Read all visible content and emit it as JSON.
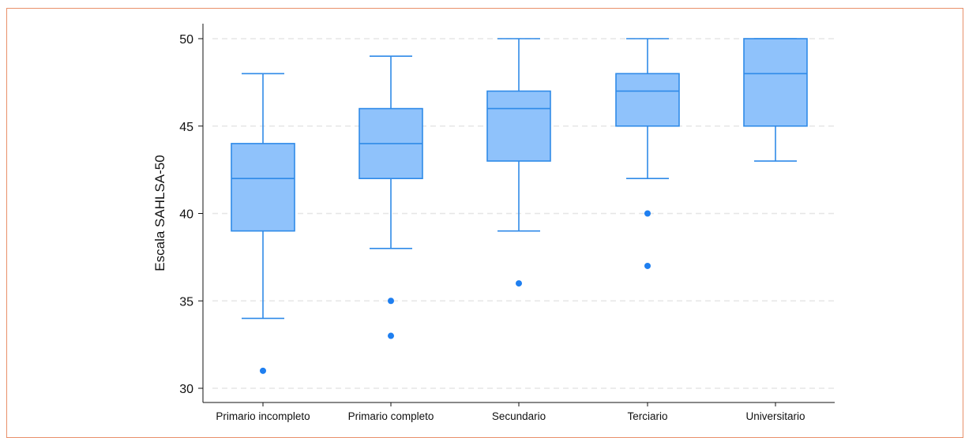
{
  "chart_data": {
    "type": "boxplot",
    "ylabel": "Escala SAHLSA-50",
    "ylim": [
      30,
      50
    ],
    "yticks": [
      30,
      35,
      40,
      45,
      50
    ],
    "grid": "horizontal-dashed",
    "categories": [
      "Primario incompleto",
      "Primario completo",
      "Secundario",
      "Terciario",
      "Universitario"
    ],
    "boxes": [
      {
        "category": "Primario incompleto",
        "whisker_low": 34,
        "q1": 39,
        "median": 42,
        "q3": 44,
        "whisker_high": 48,
        "outliers": [
          31
        ]
      },
      {
        "category": "Primario completo",
        "whisker_low": 38,
        "q1": 42,
        "median": 44,
        "q3": 46,
        "whisker_high": 49,
        "outliers": [
          35,
          33
        ]
      },
      {
        "category": "Secundario",
        "whisker_low": 39,
        "q1": 43,
        "median": 46,
        "q3": 47,
        "whisker_high": 50,
        "outliers": [
          36
        ]
      },
      {
        "category": "Terciario",
        "whisker_low": 42,
        "q1": 45,
        "median": 47,
        "q3": 48,
        "whisker_high": 50,
        "outliers": [
          40,
          37
        ]
      },
      {
        "category": "Universitario",
        "whisker_low": 43,
        "q1": 45,
        "median": 48,
        "q3": 50,
        "whisker_high": 50,
        "outliers": []
      }
    ],
    "colors": {
      "box_fill": "#8fc2fb",
      "box_stroke": "#2f8ae8",
      "outlier": "#1f7ff0",
      "grid": "#e6e6e6",
      "axis": "#111111"
    }
  }
}
